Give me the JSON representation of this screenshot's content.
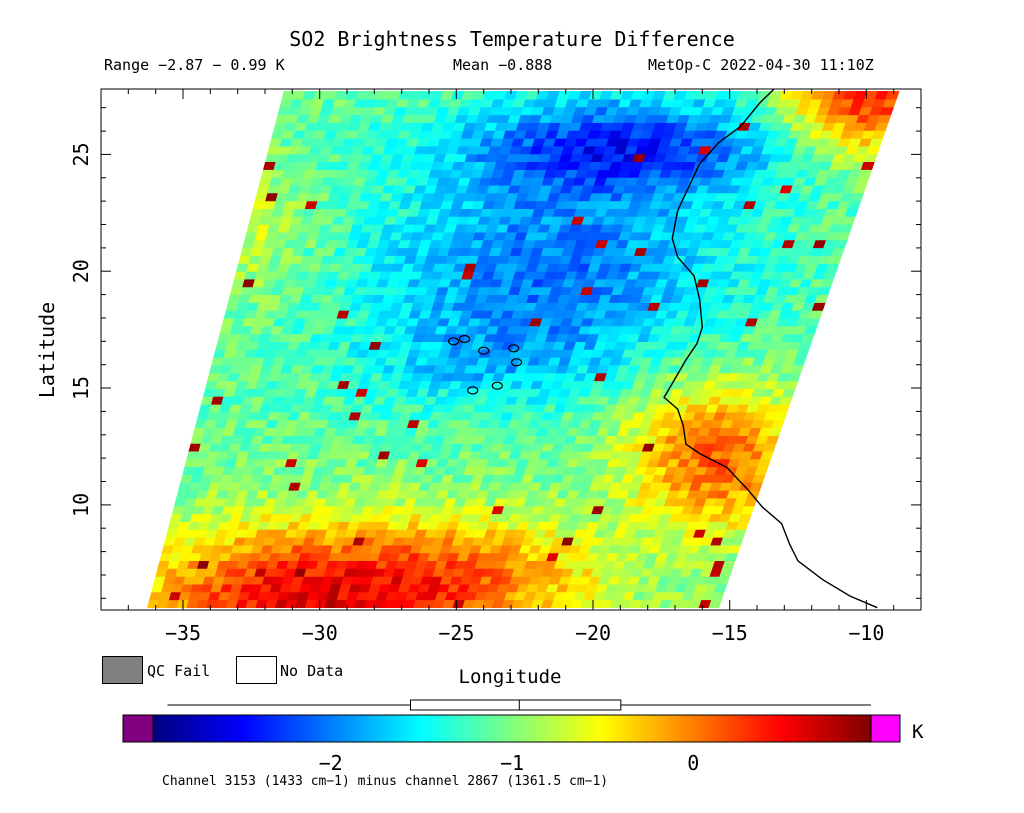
{
  "chart_data": {
    "type": "heatmap",
    "title": "SO2 Brightness Temperature Difference",
    "range_text": "Range −2.87 − 0.99 K",
    "mean_text": "Mean −0.888",
    "satellite_text": "MetOp-C 2022-04-30 11:10Z",
    "xlabel": "Longitude",
    "ylabel": "Latitude",
    "xlim": [
      -38,
      -8
    ],
    "ylim": [
      5.5,
      27.8
    ],
    "xticks": [
      -35,
      -30,
      -25,
      -20,
      -15,
      -10
    ],
    "xtick_labels": [
      "−35",
      "−30",
      "−25",
      "−20",
      "−15",
      "−10"
    ],
    "yticks": [
      10,
      15,
      20,
      25
    ],
    "ytick_labels": [
      "10",
      "15",
      "20",
      "25"
    ],
    "swath_corners_lonlat": [
      [
        -36.3,
        5.6
      ],
      [
        -15.4,
        5.6
      ],
      [
        -8.8,
        27.7
      ],
      [
        -31.3,
        27.7
      ]
    ],
    "value_range_K": [
      -2.87,
      0.99
    ],
    "mean_K": -0.888,
    "value_regions": [
      {
        "region": "north-central around 25N, -24 to -15",
        "value_K": -2.4
      },
      {
        "region": "central around 20N, -28 to -16",
        "value_K": -2.0
      },
      {
        "region": "west edge",
        "value_K": -1.1
      },
      {
        "region": "southwest corner around 7N, -33 to -28",
        "value_K": 0.5
      },
      {
        "region": "southeast near coast 12N, -17 to -13",
        "value_K": 0.3
      },
      {
        "region": "northeast corner 27N, -12 to -9",
        "value_K": 0.6
      }
    ],
    "colorbar": {
      "min": -2.98,
      "max": 0.98,
      "ticks": [
        -2,
        -1,
        0
      ],
      "tick_labels": [
        "−2",
        "−1",
        "0"
      ],
      "unit": "K",
      "under_color": "#800080",
      "over_color": "#ff00ff",
      "boxplot": {
        "whisker_low": -2.9,
        "q1": -1.56,
        "median": -0.96,
        "q3": -0.4,
        "whisker_high": 0.98
      }
    },
    "legend": {
      "qc_fail": "QC Fail",
      "no_data": "No Data",
      "qc_fail_color": "#808080",
      "no_data_color": "#ffffff"
    },
    "footnote": "Channel 3153 (1433 cm−1) minus channel 2867 (1361.5 cm−1)"
  }
}
